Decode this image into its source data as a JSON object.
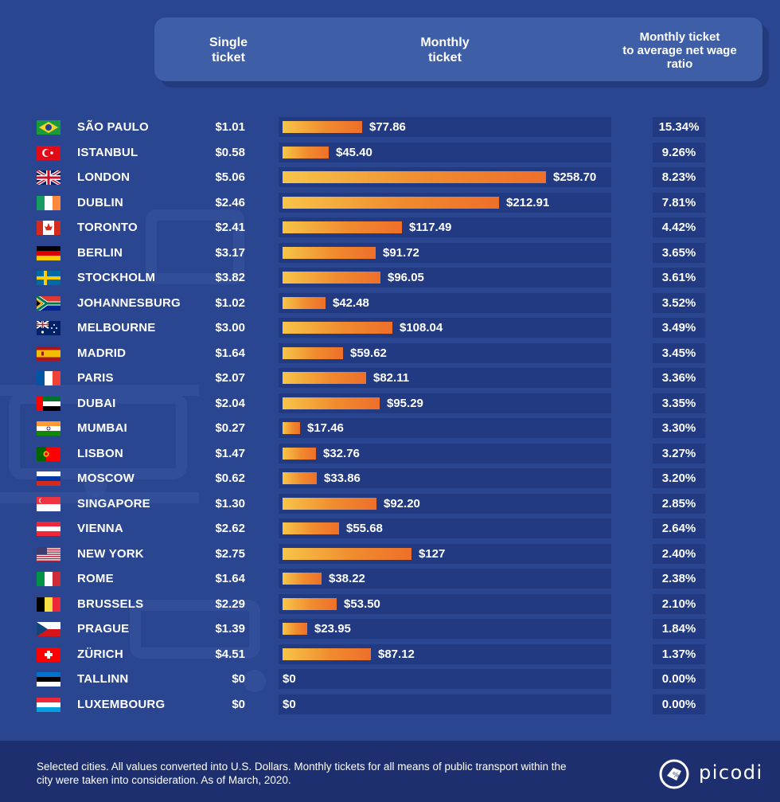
{
  "headers": {
    "single": "Single\nticket",
    "monthly": "Monthly\nticket",
    "ratio": "Monthly ticket\nto average net wage\nratio"
  },
  "chart_data": {
    "type": "bar",
    "orientation": "horizontal",
    "value_prefix": "$",
    "series": [
      {
        "name": "Monthly ticket",
        "values": [
          77.86,
          45.4,
          258.7,
          212.91,
          117.49,
          91.72,
          96.05,
          42.48,
          108.04,
          59.62,
          82.11,
          95.29,
          17.46,
          32.76,
          33.86,
          92.2,
          55.68,
          127,
          38.22,
          53.5,
          23.95,
          87.12,
          0,
          0
        ]
      }
    ],
    "rows": [
      {
        "city": "SÃO PAULO",
        "flag": "brazil-flag",
        "single": "$1.01",
        "monthly": 77.86,
        "monthly_label": "$77.86",
        "ratio": "15.34%"
      },
      {
        "city": "ISTANBUL",
        "flag": "turkey-flag",
        "single": "$0.58",
        "monthly": 45.4,
        "monthly_label": "$45.40",
        "ratio": "9.26%"
      },
      {
        "city": "LONDON",
        "flag": "uk-flag",
        "single": "$5.06",
        "monthly": 258.7,
        "monthly_label": "$258.70",
        "ratio": "8.23%"
      },
      {
        "city": "DUBLIN",
        "flag": "ireland-flag",
        "single": "$2.46",
        "monthly": 212.91,
        "monthly_label": "$212.91",
        "ratio": "7.81%"
      },
      {
        "city": "TORONTO",
        "flag": "canada-flag",
        "single": "$2.41",
        "monthly": 117.49,
        "monthly_label": "$117.49",
        "ratio": "4.42%"
      },
      {
        "city": "BERLIN",
        "flag": "germany-flag",
        "single": "$3.17",
        "monthly": 91.72,
        "monthly_label": "$91.72",
        "ratio": "3.65%"
      },
      {
        "city": "STOCKHOLM",
        "flag": "sweden-flag",
        "single": "$3.82",
        "monthly": 96.05,
        "monthly_label": "$96.05",
        "ratio": "3.61%"
      },
      {
        "city": "JOHANNESBURG",
        "flag": "south-africa-flag",
        "single": "$1.02",
        "monthly": 42.48,
        "monthly_label": "$42.48",
        "ratio": "3.52%"
      },
      {
        "city": "MELBOURNE",
        "flag": "australia-flag",
        "single": "$3.00",
        "monthly": 108.04,
        "monthly_label": "$108.04",
        "ratio": "3.49%"
      },
      {
        "city": "MADRID",
        "flag": "spain-flag",
        "single": "$1.64",
        "monthly": 59.62,
        "monthly_label": "$59.62",
        "ratio": "3.45%"
      },
      {
        "city": "PARIS",
        "flag": "france-flag",
        "single": "$2.07",
        "monthly": 82.11,
        "monthly_label": "$82.11",
        "ratio": "3.36%"
      },
      {
        "city": "DUBAI",
        "flag": "uae-flag",
        "single": "$2.04",
        "monthly": 95.29,
        "monthly_label": "$95.29",
        "ratio": "3.35%"
      },
      {
        "city": "MUMBAI",
        "flag": "india-flag",
        "single": "$0.27",
        "monthly": 17.46,
        "monthly_label": "$17.46",
        "ratio": "3.30%"
      },
      {
        "city": "LISBON",
        "flag": "portugal-flag",
        "single": "$1.47",
        "monthly": 32.76,
        "monthly_label": "$32.76",
        "ratio": "3.27%"
      },
      {
        "city": "MOSCOW",
        "flag": "russia-flag",
        "single": "$0.62",
        "monthly": 33.86,
        "monthly_label": "$33.86",
        "ratio": "3.20%"
      },
      {
        "city": "SINGAPORE",
        "flag": "singapore-flag",
        "single": "$1.30",
        "monthly": 92.2,
        "monthly_label": "$92.20",
        "ratio": "2.85%"
      },
      {
        "city": "VIENNA",
        "flag": "austria-flag",
        "single": "$2.62",
        "monthly": 55.68,
        "monthly_label": "$55.68",
        "ratio": "2.64%"
      },
      {
        "city": "NEW YORK",
        "flag": "usa-flag",
        "single": "$2.75",
        "monthly": 127,
        "monthly_label": "$127",
        "ratio": "2.40%"
      },
      {
        "city": "ROME",
        "flag": "italy-flag",
        "single": "$1.64",
        "monthly": 38.22,
        "monthly_label": "$38.22",
        "ratio": "2.38%"
      },
      {
        "city": "BRUSSELS",
        "flag": "belgium-flag",
        "single": "$2.29",
        "monthly": 53.5,
        "monthly_label": "$53.50",
        "ratio": "2.10%"
      },
      {
        "city": "PRAGUE",
        "flag": "czech-flag",
        "single": "$1.39",
        "monthly": 23.95,
        "monthly_label": "$23.95",
        "ratio": "1.84%"
      },
      {
        "city": "ZÜRICH",
        "flag": "switzerland-flag",
        "single": "$4.51",
        "monthly": 87.12,
        "monthly_label": "$87.12",
        "ratio": "1.37%"
      },
      {
        "city": "TALLINN",
        "flag": "estonia-flag",
        "single": "$0",
        "monthly": 0,
        "monthly_label": "$0",
        "ratio": "0.00%"
      },
      {
        "city": "LUXEMBOURG",
        "flag": "luxembourg-flag",
        "single": "$0",
        "monthly": 0,
        "monthly_label": "$0",
        "ratio": "0.00%"
      }
    ],
    "xlim": [
      0,
      258.7
    ],
    "grid": false,
    "legend": "none"
  },
  "colors": {
    "background": "#2b4690",
    "track": "#223a82",
    "bar_start": "#f7c548",
    "bar_end": "#ee6f2a",
    "footer": "#1d2f6e"
  },
  "footer": {
    "note": "Selected cities. All values converted into U.S. Dollars. Monthly tickets for all means of public transport within the city were taken into consideration. As of March, 2020.",
    "brand": "picodi"
  }
}
